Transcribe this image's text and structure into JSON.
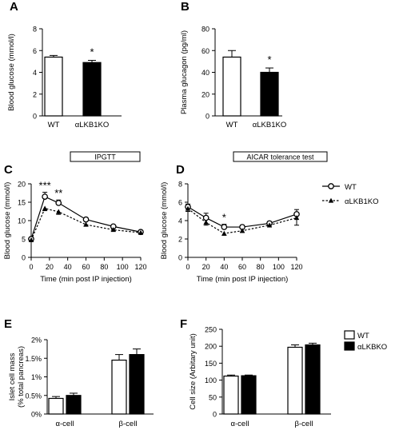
{
  "figure": {
    "legend_cd": {
      "wt": "WT",
      "ko": "αLKB1KO"
    },
    "legend_ef": {
      "wt": "WT",
      "ko": "αLKBKO"
    }
  },
  "chart_data": [
    {
      "panel": "A",
      "type": "bar",
      "categories": [
        "WT",
        "αLKB1KO"
      ],
      "values": [
        5.4,
        4.9
      ],
      "errors": [
        0.15,
        0.2
      ],
      "colors": [
        "#ffffff",
        "#000000"
      ],
      "significance": [
        null,
        "*"
      ],
      "ylabel": "Blood glucose (mmol/l)",
      "ylim": [
        0,
        8
      ],
      "yticks": [
        0,
        2,
        4,
        6,
        8
      ]
    },
    {
      "panel": "B",
      "type": "bar",
      "categories": [
        "WT",
        "αLKB1KO"
      ],
      "values": [
        54,
        40
      ],
      "errors": [
        6,
        4
      ],
      "colors": [
        "#ffffff",
        "#000000"
      ],
      "significance": [
        null,
        "*"
      ],
      "ylabel": "Plasma glucagon (pg/ml)",
      "ylim": [
        0,
        80
      ],
      "yticks": [
        0,
        20,
        40,
        60,
        80
      ]
    },
    {
      "panel": "C",
      "type": "line",
      "title": "IPGTT",
      "x": [
        0,
        15,
        30,
        60,
        90,
        120
      ],
      "series": [
        {
          "name": "WT",
          "values": [
            5.0,
            16.5,
            14.8,
            10.3,
            8.4,
            6.9
          ],
          "errors": [
            0.4,
            1.2,
            0.8,
            0.4,
            0.3,
            0.3
          ]
        },
        {
          "name": "αLKB1KO",
          "values": [
            4.7,
            13.3,
            12.4,
            8.9,
            7.5,
            6.7
          ],
          "errors": [
            0.3,
            0.6,
            0.7,
            0.4,
            0.3,
            0.3
          ]
        }
      ],
      "annotations": [
        {
          "x": 15,
          "text": "***"
        },
        {
          "x": 30,
          "text": "**"
        }
      ],
      "xlabel": "Time (min post IP injection)",
      "ylabel": "Blood glucose (mmol/l)",
      "xlim": [
        0,
        120
      ],
      "xticks": [
        0,
        20,
        40,
        60,
        80,
        100,
        120
      ],
      "ylim": [
        0,
        20
      ],
      "yticks": [
        0,
        5,
        10,
        15,
        20
      ]
    },
    {
      "panel": "D",
      "type": "line",
      "title": "AICAR tolerance test",
      "x": [
        0,
        20,
        40,
        60,
        90,
        120
      ],
      "series": [
        {
          "name": "WT",
          "values": [
            5.5,
            4.3,
            3.3,
            3.3,
            3.7,
            4.7
          ],
          "errors": [
            0.3,
            0.5,
            0.3,
            0.2,
            0.2,
            0.5
          ]
        },
        {
          "name": "αLKB1KO",
          "values": [
            5.3,
            3.8,
            2.6,
            2.9,
            3.5,
            4.3
          ],
          "errors": [
            0.3,
            0.3,
            0.2,
            0.2,
            0.2,
            0.8
          ]
        }
      ],
      "annotations": [
        {
          "x": 40,
          "text": "*"
        }
      ],
      "xlabel": "Time (min post IP injection)",
      "ylabel": "Blood glucose (mmol/l)",
      "xlim": [
        0,
        120
      ],
      "xticks": [
        0,
        20,
        40,
        60,
        80,
        100,
        120
      ],
      "ylim": [
        0,
        8
      ],
      "yticks": [
        0,
        2,
        4,
        6,
        8
      ]
    },
    {
      "panel": "E",
      "type": "bar",
      "categories": [
        "α-cell",
        "β-cell"
      ],
      "series": [
        {
          "name": "WT",
          "values": [
            0.42,
            1.45
          ],
          "errors": [
            0.05,
            0.15
          ],
          "color": "#ffffff"
        },
        {
          "name": "αLKBKO",
          "values": [
            0.5,
            1.6
          ],
          "errors": [
            0.06,
            0.15
          ],
          "color": "#000000"
        }
      ],
      "ylabel": "Islet cell mass (% total pancreas)",
      "ylim": [
        0,
        2.0
      ],
      "yticks": [
        0,
        0.5,
        1.0,
        1.5,
        2.0
      ],
      "ytick_labels": [
        "0%",
        "0.5%",
        "1%",
        "1.5%",
        "2%"
      ]
    },
    {
      "panel": "F",
      "type": "bar",
      "categories": [
        "α-cell",
        "β-cell"
      ],
      "series": [
        {
          "name": "WT",
          "values": [
            112,
            197
          ],
          "errors": [
            3,
            7
          ],
          "color": "#ffffff"
        },
        {
          "name": "αLKBKO",
          "values": [
            113,
            204
          ],
          "errors": [
            2,
            5
          ],
          "color": "#000000"
        }
      ],
      "ylabel": "Cell size (Arbitary unit)",
      "ylim": [
        0,
        250
      ],
      "yticks": [
        0,
        50,
        100,
        150,
        200,
        250
      ]
    }
  ]
}
